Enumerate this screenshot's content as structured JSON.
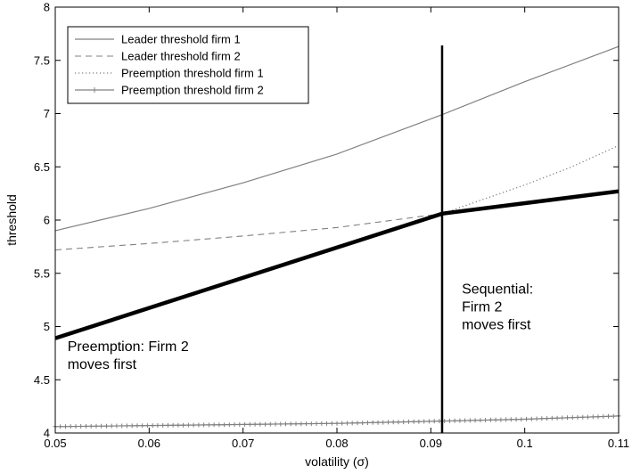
{
  "chart_data": {
    "type": "line",
    "xlabel": "volatility (σ)",
    "ylabel": "threshold",
    "xlim": [
      0.05,
      0.11
    ],
    "ylim": [
      4,
      8
    ],
    "xticks": [
      0.05,
      0.06,
      0.07,
      0.08,
      0.09,
      0.1,
      0.11
    ],
    "xtick_labels": [
      "0.05",
      "0.06",
      "0.07",
      "0.08",
      "0.09",
      "0.1",
      "0.11"
    ],
    "yticks": [
      4,
      4.5,
      5,
      5.5,
      6,
      6.5,
      7,
      7.5,
      8
    ],
    "ytick_labels": [
      "4",
      "4.5",
      "5",
      "5.5",
      "6",
      "6.5",
      "7",
      "7.5",
      "8"
    ],
    "grid": false,
    "legend_position": "top-left",
    "series": [
      {
        "name": "Leader threshold firm 1",
        "style": "solid",
        "color": "#808080",
        "x": [
          0.05,
          0.06,
          0.07,
          0.08,
          0.0912,
          0.1,
          0.11
        ],
        "y": [
          5.9,
          6.11,
          6.35,
          6.62,
          6.99,
          7.3,
          7.63
        ]
      },
      {
        "name": "Leader threshold firm 2",
        "style": "dashed",
        "color": "#808080",
        "x": [
          0.05,
          0.06,
          0.07,
          0.08,
          0.0912
        ],
        "y": [
          5.72,
          5.78,
          5.85,
          5.93,
          6.06
        ]
      },
      {
        "name": "Preemption threshold firm 1",
        "style": "dotted",
        "color": "#808080",
        "x": [
          0.0912,
          0.1,
          0.105,
          0.11
        ],
        "y": [
          6.06,
          6.33,
          6.5,
          6.7
        ]
      },
      {
        "name": "Preemption threshold firm 2",
        "style": "plus-markers",
        "color": "#808080",
        "x": [
          0.05,
          0.06,
          0.07,
          0.08,
          0.09,
          0.1,
          0.11
        ],
        "y": [
          4.06,
          4.07,
          4.08,
          4.09,
          4.11,
          4.13,
          4.16
        ]
      }
    ],
    "bold_line": {
      "color": "#000000",
      "x": [
        0.05,
        0.0912,
        0.11
      ],
      "y": [
        4.89,
        6.06,
        6.27
      ]
    },
    "vertical_line": {
      "x": 0.0912,
      "y_range": [
        4,
        7.64
      ],
      "color": "#000000"
    },
    "annotations": [
      {
        "lines": [
          "Preemption: Firm 2",
          "moves first"
        ],
        "x": 0.0513,
        "y": 4.77
      },
      {
        "lines": [
          "Sequential:",
          "Firm 2",
          "moves first"
        ],
        "x": 0.0933,
        "y": 5.31
      }
    ]
  }
}
